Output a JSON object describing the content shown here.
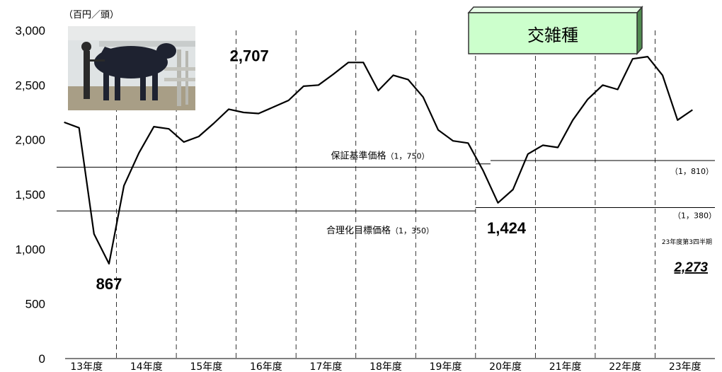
{
  "chart_data": {
    "type": "line",
    "title": "交雑種",
    "unit_label": "（百円／頭）",
    "ylim": [
      0,
      3000
    ],
    "y_ticks": [
      "0",
      "500",
      "1,000",
      "1,500",
      "2,000",
      "2,500",
      "3,000"
    ],
    "x_ticks": [
      "13年度",
      "14年度",
      "15年度",
      "16年度",
      "17年度",
      "18年度",
      "19年度",
      "20年度",
      "21年度",
      "22年度",
      "23年度"
    ],
    "quarters_per_year": 4,
    "series": [
      {
        "values": [
          2160,
          2110,
          1140,
          867,
          1580,
          1880,
          2120,
          2100,
          1980,
          2030,
          2150,
          2280,
          2250,
          2240,
          2300,
          2360,
          2490,
          2500,
          2600,
          2707,
          2707,
          2450,
          2590,
          2550,
          2390,
          2090,
          1990,
          1970,
          1720,
          1424,
          1545,
          1870,
          1950,
          1930,
          2180,
          2370,
          2500,
          2460,
          2740,
          2760,
          2590,
          2180,
          2273
        ]
      }
    ],
    "reference_lines": [
      {
        "label": "保証基準価格",
        "value_text": "（1，750）",
        "value": 1750,
        "from_quarter": 0,
        "to_quarter": 28
      },
      {
        "label": "",
        "value_text": "",
        "value": 1780,
        "from_quarter": 28,
        "to_quarter": 29
      },
      {
        "label": "",
        "value_text": "（1，810）",
        "value": 1810,
        "from_quarter": 29,
        "to_quarter": 44
      },
      {
        "label": "合理化目標価格",
        "value_text": "（1，350）",
        "value": 1350,
        "from_quarter": 0,
        "to_quarter": 28
      },
      {
        "label": "",
        "value_text": "（1，380）",
        "value": 1380,
        "from_quarter": 28,
        "to_quarter": 44
      }
    ],
    "annotations": [
      {
        "text": "867",
        "quarter": 3,
        "value": 867
      },
      {
        "text": "2,707",
        "quarter": 19,
        "value": 2707
      },
      {
        "text": "1,424",
        "quarter": 29,
        "value": 1424
      },
      {
        "text": "23年度第3四半期",
        "quarter": 42,
        "value": 2273
      },
      {
        "text": "2,273",
        "quarter": 42,
        "value": 2273
      }
    ],
    "grid": "vertical dashed year separators",
    "legend": "none",
    "colors": {
      "line": "#000000",
      "title_box_fill": "#ccffcc",
      "title_box_border": "#333333"
    }
  },
  "photo": {
    "icon": "cattle-photo",
    "colors": {
      "sky": "#dfe3e4",
      "cow": "#1e2230",
      "ground": "#a89e86"
    }
  }
}
